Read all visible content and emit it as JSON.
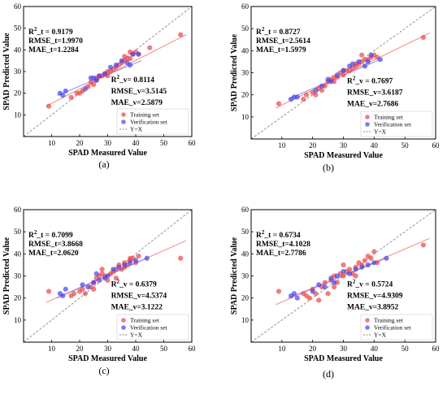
{
  "colors": {
    "training": "#ee4444",
    "verification": "#4444ee",
    "training_fit": "#f08a80",
    "verification_fit": "#8a8aee",
    "identity": "#888888"
  },
  "chart_data": [
    {
      "type": "scatter",
      "panel_label": "(a)",
      "xlabel": "SPAD Measured Value",
      "ylabel": "SPAD Predicted Value",
      "xlim": [
        0,
        60
      ],
      "ylim": [
        0,
        60
      ],
      "xticks": [
        "10",
        "20",
        "30",
        "40",
        "50",
        "60"
      ],
      "yticks": [
        "10",
        "20",
        "30",
        "40",
        "50",
        "60"
      ],
      "legend_position": "bottom-right",
      "legend": [
        "Training set",
        "Verification set",
        "Y=X"
      ],
      "stats_train": [
        "R²_t = 0.9179",
        "RMSE_t=1.9970",
        "MAE_t=1.2284"
      ],
      "stats_verif": [
        "R²_v= 0.8114",
        "RMSE_v=3.5145",
        "MAE_v=2.5879"
      ],
      "train_fit": [
        [
          8,
          14
        ],
        [
          58,
          47
        ]
      ],
      "verif_fit": [
        [
          12,
          19
        ],
        [
          42,
          35
        ]
      ],
      "series": [
        {
          "name": "Training set",
          "points": [
            [
              9,
              14
            ],
            [
              17,
              18
            ],
            [
              19,
              20
            ],
            [
              20,
              20
            ],
            [
              21,
              21
            ],
            [
              23,
              23
            ],
            [
              25,
              24
            ],
            [
              26,
              26
            ],
            [
              27,
              28
            ],
            [
              28,
              28
            ],
            [
              29,
              29
            ],
            [
              30,
              30
            ],
            [
              31,
              30
            ],
            [
              32,
              31
            ],
            [
              33,
              32
            ],
            [
              34,
              33
            ],
            [
              35,
              34
            ],
            [
              36,
              35
            ],
            [
              37,
              36
            ],
            [
              38,
              36
            ],
            [
              39,
              38
            ],
            [
              40,
              39
            ],
            [
              41,
              38
            ],
            [
              45,
              41
            ],
            [
              56,
              47
            ],
            [
              24,
              25
            ],
            [
              30,
              28
            ],
            [
              36,
              37
            ],
            [
              38,
              39
            ],
            [
              26,
              27
            ]
          ]
        },
        {
          "name": "Verification set",
          "points": [
            [
              13,
              20
            ],
            [
              14,
              19
            ],
            [
              15,
              21
            ],
            [
              22,
              22
            ],
            [
              24,
              27
            ],
            [
              25,
              27
            ],
            [
              26,
              26
            ],
            [
              27,
              28
            ],
            [
              29,
              29
            ],
            [
              31,
              32
            ],
            [
              33,
              33
            ],
            [
              35,
              35
            ],
            [
              37,
              34
            ],
            [
              38,
              33
            ],
            [
              39,
              38
            ],
            [
              41,
              38
            ]
          ]
        }
      ]
    },
    {
      "type": "scatter",
      "panel_label": "(b)",
      "xlabel": "SPAD Measured Value",
      "ylabel": "SPAD Predicted Value",
      "xlim": [
        0,
        60
      ],
      "ylim": [
        0,
        60
      ],
      "xticks": [
        "10",
        "20",
        "30",
        "40",
        "50",
        "60"
      ],
      "yticks": [
        "10",
        "20",
        "30",
        "40",
        "50",
        "60"
      ],
      "legend_position": "bottom-right",
      "legend": [
        "Training set",
        "Verification set",
        "Y=X"
      ],
      "stats_train": [
        "R²_t = 0.8727",
        "RMSE_t=2.5614",
        "MAE_t=1.5979"
      ],
      "stats_verif": [
        "R²_v = 0.7697",
        "RMSE_v=3.6187",
        "MAE_v=2.7686"
      ],
      "train_fit": [
        [
          8,
          14
        ],
        [
          58,
          48
        ]
      ],
      "verif_fit": [
        [
          12,
          18
        ],
        [
          42,
          36
        ]
      ],
      "series": [
        {
          "name": "Training set",
          "points": [
            [
              9,
              16
            ],
            [
              17,
              18
            ],
            [
              18,
              20
            ],
            [
              20,
              21
            ],
            [
              21,
              20
            ],
            [
              22,
              23
            ],
            [
              24,
              24
            ],
            [
              25,
              26
            ],
            [
              26,
              27
            ],
            [
              27,
              28
            ],
            [
              28,
              28
            ],
            [
              29,
              30
            ],
            [
              30,
              29
            ],
            [
              31,
              31
            ],
            [
              32,
              31
            ],
            [
              33,
              32
            ],
            [
              34,
              34
            ],
            [
              35,
              34
            ],
            [
              36,
              35
            ],
            [
              37,
              36
            ],
            [
              38,
              36
            ],
            [
              39,
              37
            ],
            [
              40,
              38
            ],
            [
              41,
              37
            ],
            [
              56,
              46
            ],
            [
              23,
              22
            ],
            [
              30,
              31
            ],
            [
              34,
              33
            ],
            [
              36,
              38
            ],
            [
              27,
              26
            ]
          ]
        },
        {
          "name": "Verification set",
          "points": [
            [
              13,
              18
            ],
            [
              14,
              19
            ],
            [
              15,
              19
            ],
            [
              21,
              22
            ],
            [
              23,
              24
            ],
            [
              25,
              27
            ],
            [
              26,
              26
            ],
            [
              28,
              29
            ],
            [
              30,
              31
            ],
            [
              32,
              33
            ],
            [
              33,
              34
            ],
            [
              35,
              35
            ],
            [
              37,
              33
            ],
            [
              38,
              35
            ],
            [
              39,
              38
            ],
            [
              42,
              36
            ]
          ]
        }
      ]
    },
    {
      "type": "scatter",
      "panel_label": "(c)",
      "xlabel": "SPAD Measured Value",
      "ylabel": "SPAD Predicted Value",
      "xlim": [
        0,
        60
      ],
      "ylim": [
        0,
        60
      ],
      "xticks": [
        "10",
        "20",
        "30",
        "40",
        "50",
        "60"
      ],
      "yticks": [
        "10",
        "20",
        "30",
        "40",
        "50",
        "60"
      ],
      "legend_position": "bottom-right",
      "legend": [
        "Training set",
        "Verification set",
        "Y=X"
      ],
      "stats_train": [
        "R²_t = 0.7099",
        "RMSE_t=3.8668",
        "MAE_t=2.0620"
      ],
      "stats_verif": [
        "R²_v = 0.6379",
        "RMSE_v=4.5374",
        "MAE_v=3.1222"
      ],
      "train_fit": [
        [
          8,
          18
        ],
        [
          58,
          46
        ]
      ],
      "verif_fit": [
        [
          12,
          20
        ],
        [
          44,
          38
        ]
      ],
      "series": [
        {
          "name": "Training set",
          "points": [
            [
              9,
              23
            ],
            [
              17,
              21
            ],
            [
              18,
              22
            ],
            [
              20,
              23
            ],
            [
              21,
              24
            ],
            [
              22,
              22
            ],
            [
              24,
              25
            ],
            [
              25,
              27
            ],
            [
              26,
              29
            ],
            [
              27,
              30
            ],
            [
              28,
              31
            ],
            [
              29,
              30
            ],
            [
              30,
              28
            ],
            [
              31,
              31
            ],
            [
              32,
              32
            ],
            [
              33,
              33
            ],
            [
              34,
              35
            ],
            [
              35,
              33
            ],
            [
              36,
              36
            ],
            [
              37,
              35
            ],
            [
              38,
              37
            ],
            [
              39,
              38
            ],
            [
              40,
              36
            ],
            [
              41,
              39
            ],
            [
              56,
              38
            ],
            [
              25,
              24
            ],
            [
              28,
              33
            ],
            [
              33,
              29
            ],
            [
              36,
              34
            ],
            [
              38,
              38
            ]
          ]
        },
        {
          "name": "Verification set",
          "points": [
            [
              13,
              22
            ],
            [
              14,
              21
            ],
            [
              15,
              24
            ],
            [
              21,
              26
            ],
            [
              23,
              25
            ],
            [
              25,
              27
            ],
            [
              26,
              31
            ],
            [
              27,
              28
            ],
            [
              29,
              29
            ],
            [
              30,
              30
            ],
            [
              32,
              33
            ],
            [
              34,
              34
            ],
            [
              36,
              35
            ],
            [
              38,
              36
            ],
            [
              40,
              37
            ],
            [
              44,
              38
            ]
          ]
        }
      ]
    },
    {
      "type": "scatter",
      "panel_label": "(d)",
      "xlabel": "SPAD Measured Value",
      "ylabel": "SPAD Predicted Value",
      "xlim": [
        0,
        60
      ],
      "ylim": [
        0,
        60
      ],
      "xticks": [
        "10",
        "20",
        "30",
        "40",
        "50",
        "60"
      ],
      "yticks": [
        "10",
        "20",
        "30",
        "40",
        "50",
        "60"
      ],
      "legend_position": "bottom-right",
      "legend": [
        "Training set",
        "Verification set",
        "Y=X"
      ],
      "stats_train": [
        "R²_t = 0.6734",
        "RMSE_t=4.1028",
        "MAE_t=2.7786"
      ],
      "stats_verif": [
        "R²_v = 0.5724",
        "RMSE_v=4.9309",
        "MAE_v=3.8952"
      ],
      "train_fit": [
        [
          8,
          17
        ],
        [
          58,
          47
        ]
      ],
      "verif_fit": [
        [
          12,
          20
        ],
        [
          44,
          38
        ]
      ],
      "series": [
        {
          "name": "Training set",
          "points": [
            [
              9,
              23
            ],
            [
              17,
              22
            ],
            [
              18,
              21
            ],
            [
              19,
              20
            ],
            [
              20,
              24
            ],
            [
              21,
              22
            ],
            [
              22,
              19
            ],
            [
              23,
              25
            ],
            [
              24,
              27
            ],
            [
              25,
              22
            ],
            [
              26,
              28
            ],
            [
              27,
              30
            ],
            [
              28,
              27
            ],
            [
              29,
              31
            ],
            [
              30,
              30
            ],
            [
              31,
              32
            ],
            [
              32,
              33
            ],
            [
              33,
              31
            ],
            [
              34,
              34
            ],
            [
              35,
              36
            ],
            [
              36,
              35
            ],
            [
              37,
              37
            ],
            [
              38,
              39
            ],
            [
              39,
              38
            ],
            [
              40,
              41
            ],
            [
              41,
              36
            ],
            [
              56,
              44
            ],
            [
              27,
              25
            ],
            [
              30,
              35
            ],
            [
              34,
              30
            ]
          ]
        },
        {
          "name": "Verification set",
          "points": [
            [
              13,
              21
            ],
            [
              14,
              22
            ],
            [
              15,
              20
            ],
            [
              20,
              23
            ],
            [
              22,
              26
            ],
            [
              24,
              25
            ],
            [
              26,
              29
            ],
            [
              27,
              27
            ],
            [
              28,
              30
            ],
            [
              30,
              32
            ],
            [
              32,
              31
            ],
            [
              34,
              33
            ],
            [
              36,
              34
            ],
            [
              38,
              35
            ],
            [
              40,
              36
            ],
            [
              44,
              38
            ]
          ]
        }
      ]
    }
  ]
}
